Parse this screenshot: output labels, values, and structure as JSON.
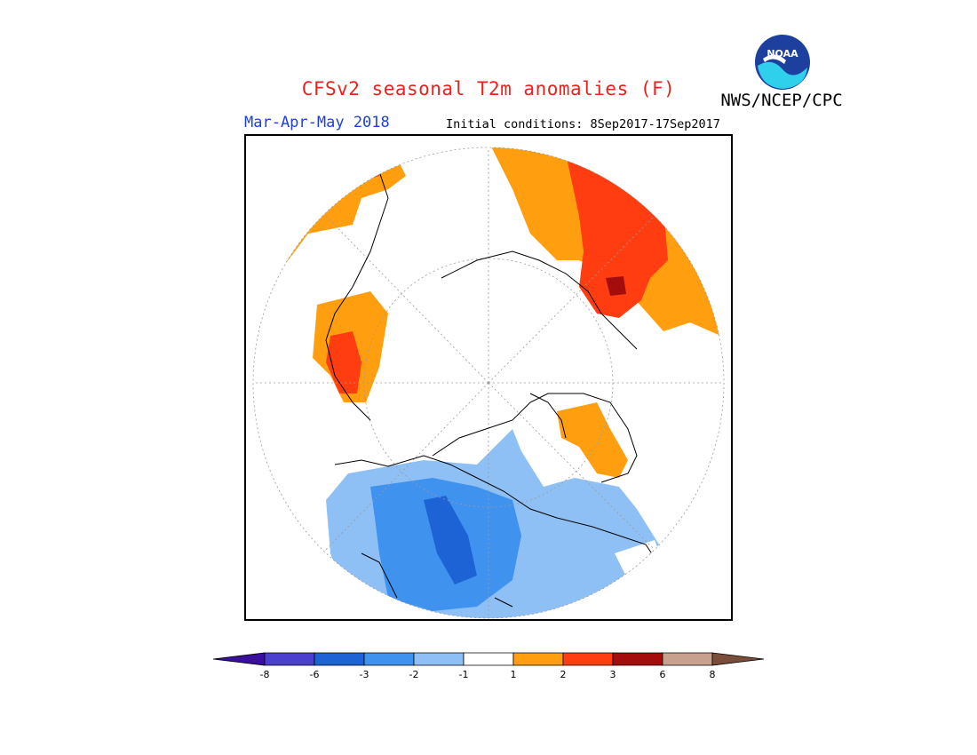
{
  "header": {
    "title": "CFSv2 seasonal T2m anomalies (F)",
    "agency": "NWS/NCEP/CPC",
    "season": "Mar-Apr-May 2018",
    "initial_conditions": "Initial conditions: 8Sep2017-17Sep2017"
  },
  "logo": {
    "icon": "noaa-logo-icon",
    "text": "NOAA"
  },
  "colorbar": {
    "bins": [
      {
        "color": "#3b0f9e"
      },
      {
        "color": "#4b3fcf"
      },
      {
        "color": "#1e63d6"
      },
      {
        "color": "#3f92ee"
      },
      {
        "color": "#8fc0f5"
      },
      {
        "color": "#ffffff"
      },
      {
        "color": "#ff9f0f"
      },
      {
        "color": "#ff3d10"
      },
      {
        "color": "#a50d0d"
      },
      {
        "color": "#c8a08e"
      },
      {
        "color": "#7a4e3a"
      }
    ],
    "ticks": [
      "-8",
      "-6",
      "-3",
      "-2",
      "-1",
      "1",
      "2",
      "3",
      "6",
      "8"
    ]
  }
}
